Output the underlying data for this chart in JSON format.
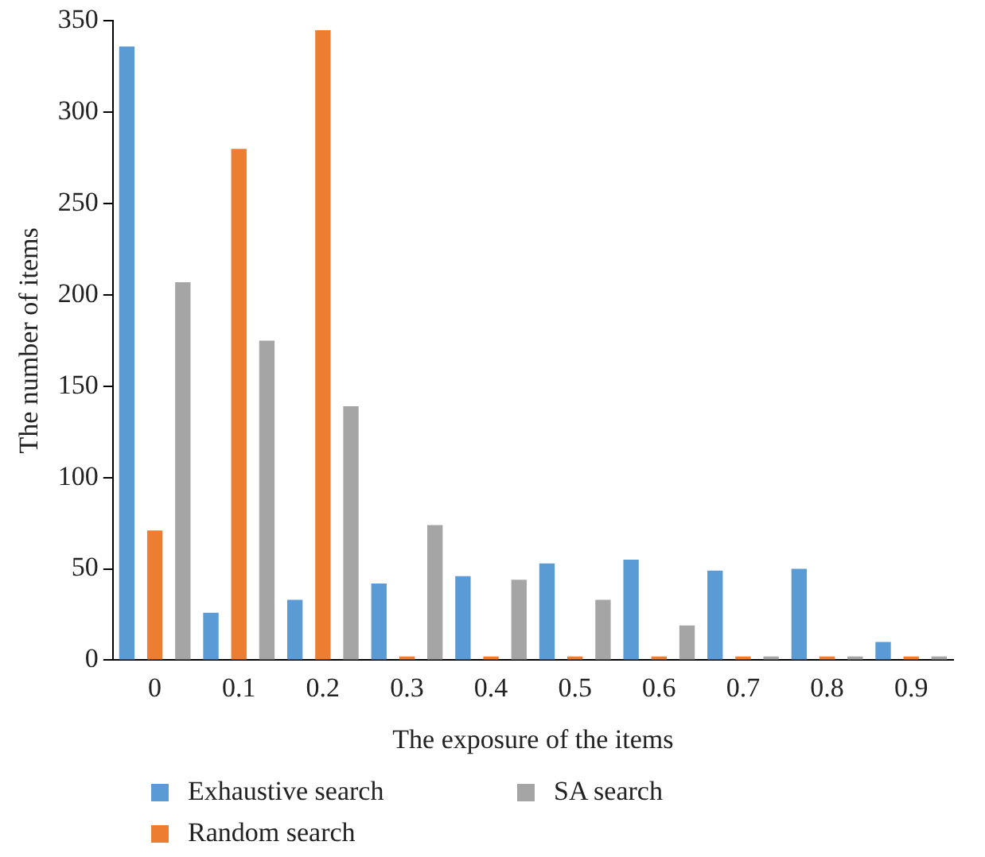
{
  "chart_data": {
    "type": "bar",
    "xlabel": "The exposure of the items",
    "ylabel": "The number of items",
    "categories": [
      "0",
      "0.1",
      "0.2",
      "0.3",
      "0.4",
      "0.5",
      "0.6",
      "0.7",
      "0.8",
      "0.9"
    ],
    "series": [
      {
        "name": "Exhaustive search",
        "color": "#5b9bd5",
        "values": [
          336,
          26,
          33,
          42,
          46,
          53,
          55,
          49,
          50,
          10
        ]
      },
      {
        "name": "Random search",
        "color": "#ed7d31",
        "values": [
          71,
          280,
          345,
          2,
          2,
          2,
          2,
          2,
          2,
          2
        ]
      },
      {
        "name": "SA search",
        "color": "#a5a5a5",
        "values": [
          207,
          175,
          139,
          74,
          44,
          33,
          19,
          2,
          2,
          2
        ]
      }
    ],
    "ylim": [
      0,
      350
    ],
    "yticks": [
      0,
      50,
      100,
      150,
      200,
      250,
      300,
      350
    ],
    "grid": false,
    "legend": "bottom"
  }
}
